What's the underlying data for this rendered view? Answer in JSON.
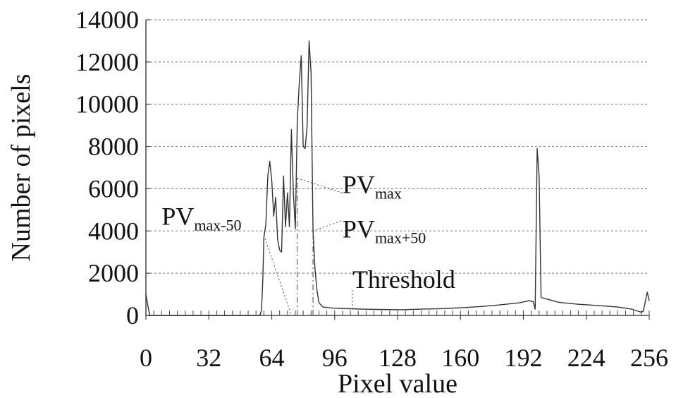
{
  "chart_data": {
    "type": "line",
    "title": "",
    "xlabel": "Pixel value",
    "ylabel": "Number of pixels",
    "xlim": [
      0,
      256
    ],
    "ylim": [
      0,
      14000
    ],
    "x_ticks": [
      0,
      32,
      64,
      96,
      128,
      160,
      192,
      224,
      256
    ],
    "y_ticks": [
      0,
      2000,
      4000,
      6000,
      8000,
      10000,
      12000,
      14000
    ],
    "grid": "horizontal-dashed",
    "legend": "none",
    "series": [
      {
        "values": [
          [
            0,
            1000
          ],
          [
            1,
            450
          ],
          [
            2,
            0
          ],
          [
            30,
            0
          ],
          [
            58,
            0
          ],
          [
            58.8,
            250
          ],
          [
            59.5,
            1800
          ],
          [
            60,
            3700
          ],
          [
            61,
            4300
          ],
          [
            62,
            6600
          ],
          [
            63,
            7300
          ],
          [
            64,
            6400
          ],
          [
            65,
            4700
          ],
          [
            66,
            5600
          ],
          [
            67,
            3600
          ],
          [
            68,
            3100
          ],
          [
            69,
            3000
          ],
          [
            70,
            6600
          ],
          [
            71,
            4200
          ],
          [
            72,
            5800
          ],
          [
            73,
            4200
          ],
          [
            74,
            8800
          ],
          [
            75,
            5800
          ],
          [
            76,
            4100
          ],
          [
            77,
            9200
          ],
          [
            78,
            11000
          ],
          [
            79,
            12300
          ],
          [
            80,
            8000
          ],
          [
            81,
            7900
          ],
          [
            82,
            9000
          ],
          [
            83,
            13000
          ],
          [
            84,
            11500
          ],
          [
            85,
            4000
          ],
          [
            86,
            2200
          ],
          [
            87,
            1200
          ],
          [
            88,
            600
          ],
          [
            90,
            400
          ],
          [
            95,
            350
          ],
          [
            100,
            330
          ],
          [
            110,
            300
          ],
          [
            120,
            280
          ],
          [
            130,
            270
          ],
          [
            140,
            300
          ],
          [
            150,
            320
          ],
          [
            160,
            360
          ],
          [
            170,
            420
          ],
          [
            180,
            500
          ],
          [
            190,
            600
          ],
          [
            195,
            700
          ],
          [
            197,
            650
          ],
          [
            198,
            300
          ],
          [
            199,
            7900
          ],
          [
            200,
            6600
          ],
          [
            201,
            850
          ],
          [
            205,
            750
          ],
          [
            210,
            620
          ],
          [
            220,
            530
          ],
          [
            230,
            470
          ],
          [
            240,
            400
          ],
          [
            247,
            300
          ],
          [
            252,
            150
          ],
          [
            253,
            200
          ],
          [
            255,
            1100
          ],
          [
            256,
            700
          ]
        ]
      }
    ],
    "annotations": [
      {
        "text": "PV",
        "subscript": "max",
        "x": 77,
        "y": 6500,
        "label_x": 100,
        "label_y": 5800
      },
      {
        "text": "PV",
        "subscript": "max-50",
        "x": 60,
        "y": 3800,
        "label_x": 8,
        "label_y": 4300
      },
      {
        "text": "PV",
        "subscript": "max+50",
        "x": 85,
        "y": 4000,
        "label_x": 100,
        "label_y": 3700
      },
      {
        "text": "Threshold",
        "subscript": "",
        "x": 105,
        "y": 300,
        "label_x": 105,
        "label_y": 1300
      }
    ],
    "reference_lines": [
      {
        "x": 77,
        "from": 0,
        "to": 6500
      },
      {
        "x": 85,
        "from": 0,
        "to": 4000
      }
    ],
    "colors": {
      "line": "#333333",
      "axis": "#444444",
      "grid": "#777777",
      "text": "#111111"
    }
  }
}
